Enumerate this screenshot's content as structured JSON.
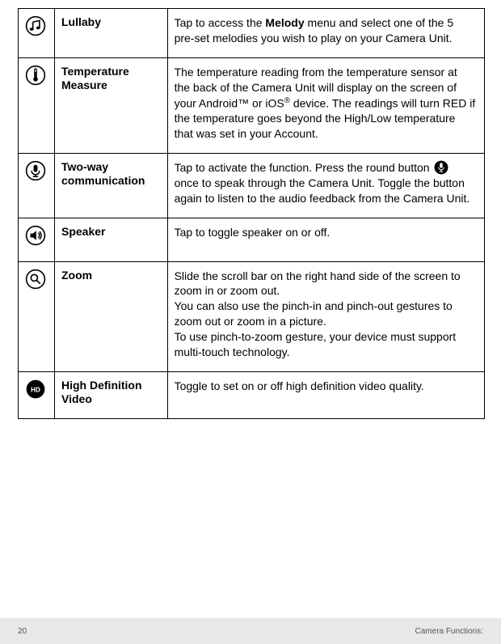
{
  "rows": [
    {
      "icon": "music-note-icon",
      "title": "Lullaby",
      "desc_parts": [
        "Tap to access the ",
        "Melody",
        " menu and select one of the 5 pre-set melodies you wish to play on your Camera Unit."
      ]
    },
    {
      "icon": "thermometer-icon",
      "title": "Temperature Measure",
      "desc_parts": [
        "The temperature reading from the temperature sensor at the back of the Camera Unit will display on the screen of your Android™ or iOS",
        "®",
        " device. The readings will turn RED if the temperature goes beyond the High/Low temperature that was set in your Account."
      ]
    },
    {
      "icon": "microphone-icon",
      "title": "Two-way communication",
      "desc_parts": [
        "Tap to activate the function. Press the round button ",
        "INLINE_MIC",
        " once to speak through the Camera Unit. Toggle the button again to listen to the audio feedback from the Camera Unit."
      ]
    },
    {
      "icon": "speaker-icon",
      "title": "Speaker",
      "desc_parts": [
        "Tap to toggle speaker on or off."
      ]
    },
    {
      "icon": "zoom-icon",
      "title": "Zoom",
      "desc_parts": [
        "Slide the scroll bar on the right hand side of the screen to zoom in or zoom out.\nYou can also use the pinch-in and pinch-out gestures to zoom out or zoom in a picture.\nTo use pinch-to-zoom gesture, your device must support multi-touch technology."
      ]
    },
    {
      "icon": "hd-icon",
      "title": "High Definition Video",
      "desc_parts": [
        "Toggle to set on or off high definition video quality."
      ]
    }
  ],
  "footer": {
    "page": "20",
    "section": "Camera Functions:"
  },
  "colors": {
    "border": "#000000",
    "text": "#000000",
    "footer_bg": "#e8e8e8",
    "footer_text": "#555555"
  },
  "font_sizes": {
    "body": 14,
    "footer": 10
  }
}
